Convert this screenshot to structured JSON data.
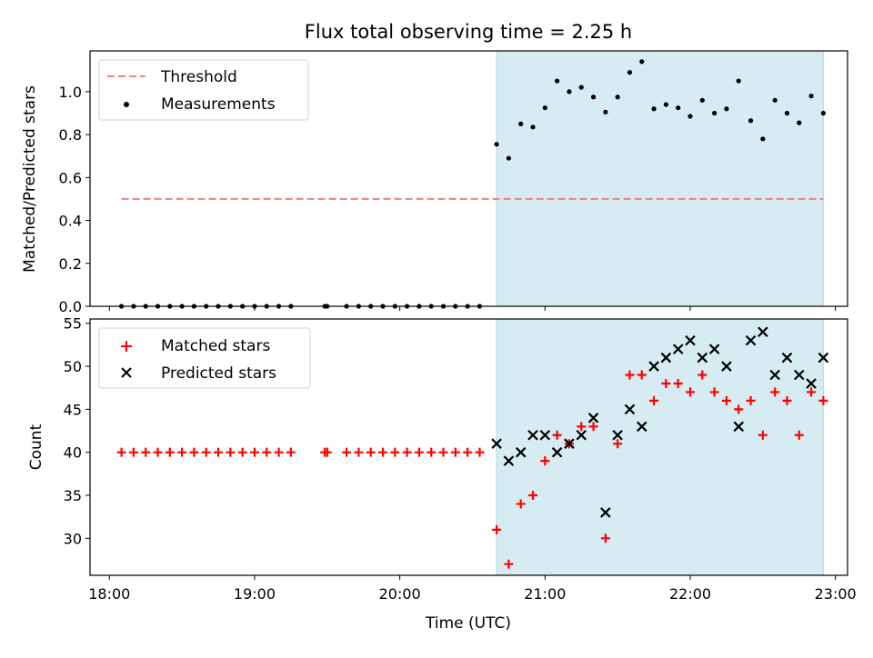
{
  "title": "Flux total observing time = 2.25 h",
  "colors": {
    "threshold": "#f08080",
    "measurements": "#000000",
    "matched": "#ff0000",
    "predicted": "#000000",
    "shade": "#add8e6"
  },
  "chart_data": [
    {
      "type": "scatter",
      "panel": "top",
      "ylabel": "Matched/Predicted stars",
      "xlabel": "",
      "x_ticks": [
        "18:00",
        "19:00",
        "20:00",
        "21:00",
        "22:00",
        "23:00"
      ],
      "y_ticks": [
        "0.0",
        "0.2",
        "0.4",
        "0.6",
        "0.8",
        "1.0"
      ],
      "ylim": [
        0,
        1.19
      ],
      "xlim": [
        "17:52",
        "23:05"
      ],
      "shaded_region": [
        "20:40",
        "22:55"
      ],
      "legend_position": "upper left",
      "legend": [
        "Threshold",
        "Measurements"
      ],
      "threshold": {
        "name": "Threshold",
        "value": 0.5,
        "x_range": [
          "18:05",
          "22:55"
        ]
      },
      "measurements": {
        "name": "Measurements",
        "x": [
          "18:05",
          "18:10",
          "18:15",
          "18:20",
          "18:25",
          "18:30",
          "18:35",
          "18:40",
          "18:45",
          "18:50",
          "18:55",
          "19:00",
          "19:05",
          "19:10",
          "19:15",
          "19:29",
          "19:30",
          "19:38",
          "19:43",
          "19:48",
          "19:53",
          "19:58",
          "20:03",
          "20:08",
          "20:13",
          "20:18",
          "20:23",
          "20:28",
          "20:33",
          "20:40",
          "20:45",
          "20:50",
          "20:55",
          "21:00",
          "21:05",
          "21:10",
          "21:15",
          "21:20",
          "21:25",
          "21:30",
          "21:35",
          "21:40",
          "21:45",
          "21:50",
          "21:55",
          "22:00",
          "22:05",
          "22:10",
          "22:15",
          "22:20",
          "22:25",
          "22:30",
          "22:35",
          "22:40",
          "22:45",
          "22:50",
          "22:55"
        ],
        "y": [
          0,
          0,
          0,
          0,
          0,
          0,
          0,
          0,
          0,
          0,
          0,
          0,
          0,
          0,
          0,
          0,
          0,
          0,
          0,
          0,
          0,
          0,
          0,
          0,
          0,
          0,
          0,
          0,
          0,
          0.755,
          0.69,
          0.85,
          0.835,
          0.925,
          1.05,
          1.0,
          1.02,
          0.975,
          0.905,
          0.975,
          1.09,
          1.14,
          0.92,
          0.94,
          0.925,
          0.885,
          0.96,
          0.9,
          0.92,
          1.05,
          0.865,
          0.78,
          0.96,
          0.9,
          0.855,
          0.98,
          0.9
        ]
      }
    },
    {
      "type": "scatter",
      "panel": "bottom",
      "ylabel": "Count",
      "xlabel": "Time (UTC)",
      "x_ticks": [
        "18:00",
        "19:00",
        "20:00",
        "21:00",
        "22:00",
        "23:00"
      ],
      "y_ticks": [
        "30",
        "35",
        "40",
        "45",
        "50",
        "55"
      ],
      "ylim": [
        25.7,
        55.5
      ],
      "xlim": [
        "17:52",
        "23:05"
      ],
      "shaded_region": [
        "20:40",
        "22:55"
      ],
      "legend_position": "upper left",
      "legend": [
        "Matched stars",
        "Predicted stars"
      ],
      "series": [
        {
          "name": "Matched stars",
          "marker": "plus",
          "x": [
            "18:05",
            "18:10",
            "18:15",
            "18:20",
            "18:25",
            "18:30",
            "18:35",
            "18:40",
            "18:45",
            "18:50",
            "18:55",
            "19:00",
            "19:05",
            "19:10",
            "19:15",
            "19:29",
            "19:30",
            "19:38",
            "19:43",
            "19:48",
            "19:53",
            "19:58",
            "20:03",
            "20:08",
            "20:13",
            "20:18",
            "20:23",
            "20:28",
            "20:33",
            "20:40",
            "20:45",
            "20:50",
            "20:55",
            "21:00",
            "21:05",
            "21:10",
            "21:15",
            "21:20",
            "21:25",
            "21:30",
            "21:35",
            "21:40",
            "21:45",
            "21:50",
            "21:55",
            "22:00",
            "22:05",
            "22:10",
            "22:15",
            "22:20",
            "22:25",
            "22:30",
            "22:35",
            "22:40",
            "22:45",
            "22:50",
            "22:55"
          ],
          "y": [
            40,
            40,
            40,
            40,
            40,
            40,
            40,
            40,
            40,
            40,
            40,
            40,
            40,
            40,
            40,
            40,
            40,
            40,
            40,
            40,
            40,
            40,
            40,
            40,
            40,
            40,
            40,
            40,
            40,
            31,
            27,
            34,
            35,
            39,
            42,
            41,
            43,
            43,
            30,
            41,
            49,
            49,
            46,
            48,
            48,
            47,
            49,
            47,
            46,
            45,
            46,
            42,
            47,
            46,
            42,
            47,
            46
          ]
        },
        {
          "name": "Predicted stars",
          "marker": "x",
          "x": [
            "20:40",
            "20:45",
            "20:50",
            "20:55",
            "21:00",
            "21:05",
            "21:10",
            "21:15",
            "21:20",
            "21:25",
            "21:30",
            "21:35",
            "21:40",
            "21:45",
            "21:50",
            "21:55",
            "22:00",
            "22:05",
            "22:10",
            "22:15",
            "22:20",
            "22:25",
            "22:30",
            "22:35",
            "22:40",
            "22:45",
            "22:50",
            "22:55"
          ],
          "y": [
            41,
            39,
            40,
            42,
            42,
            40,
            41,
            42,
            44,
            33,
            42,
            45,
            43,
            50,
            51,
            52,
            53,
            51,
            52,
            50,
            43,
            53,
            54,
            49,
            51,
            49,
            48,
            51
          ]
        }
      ]
    }
  ]
}
